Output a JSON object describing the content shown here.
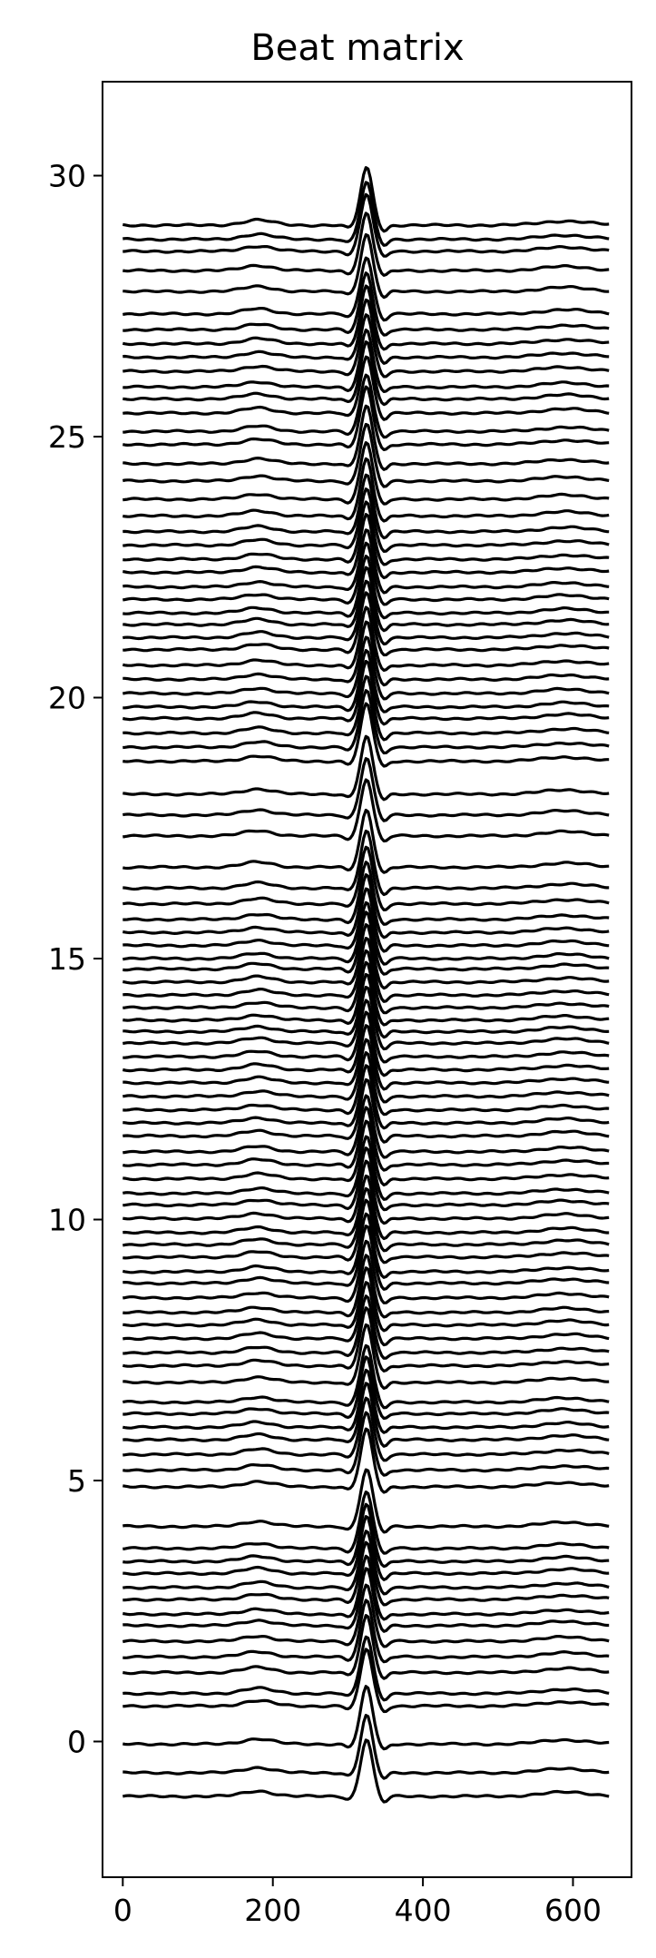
{
  "chart_data": {
    "type": "line",
    "title": "Beat matrix",
    "xlabel": "",
    "ylabel": "",
    "xlim": [
      -27,
      678
    ],
    "ylim": [
      -2.6,
      31.8
    ],
    "xticks": [
      0,
      200,
      400,
      600
    ],
    "yticks": [
      0,
      5,
      10,
      15,
      20,
      25,
      30
    ],
    "grid": false,
    "legend": "none",
    "line_color": "#000000",
    "n_samples": 651,
    "beat": {
      "peak_x": 325,
      "peak_height": 1.1,
      "p_wave_x": 180,
      "p_wave_height": 0.1,
      "s_wave_x": 348,
      "s_wave_depth": 0.12,
      "t_wave_x": 590,
      "t_wave_height": 0.08
    },
    "offsets": [
      -1.05,
      -0.6,
      -0.05,
      0.68,
      0.92,
      1.32,
      1.62,
      1.92,
      2.22,
      2.44,
      2.72,
      2.95,
      3.22,
      3.45,
      3.7,
      4.12,
      4.88,
      5.2,
      5.5,
      5.78,
      6.02,
      6.28,
      6.5,
      6.88,
      7.2,
      7.45,
      7.72,
      7.98,
      8.22,
      8.5,
      8.78,
      9.0,
      9.28,
      9.52,
      9.75,
      10.02,
      10.28,
      10.5,
      10.78,
      11.05,
      11.3,
      11.6,
      11.85,
      12.1,
      12.36,
      12.62,
      12.87,
      13.12,
      13.38,
      13.6,
      13.82,
      14.06,
      14.3,
      14.55,
      14.8,
      15.0,
      15.25,
      15.5,
      15.75,
      16.05,
      16.35,
      16.75,
      17.35,
      17.75,
      18.15,
      18.78,
      19.05,
      19.32,
      19.6,
      19.82,
      20.08,
      20.35,
      20.62,
      20.92,
      21.15,
      21.4,
      21.62,
      21.88,
      22.12,
      22.4,
      22.65,
      22.92,
      23.18,
      23.48,
      23.8,
      24.15,
      24.48,
      24.85,
      25.1,
      25.45,
      25.72,
      25.95,
      26.25,
      26.52,
      26.78,
      27.05,
      27.35,
      27.78,
      28.18,
      28.55,
      28.78,
      29.05
    ]
  }
}
